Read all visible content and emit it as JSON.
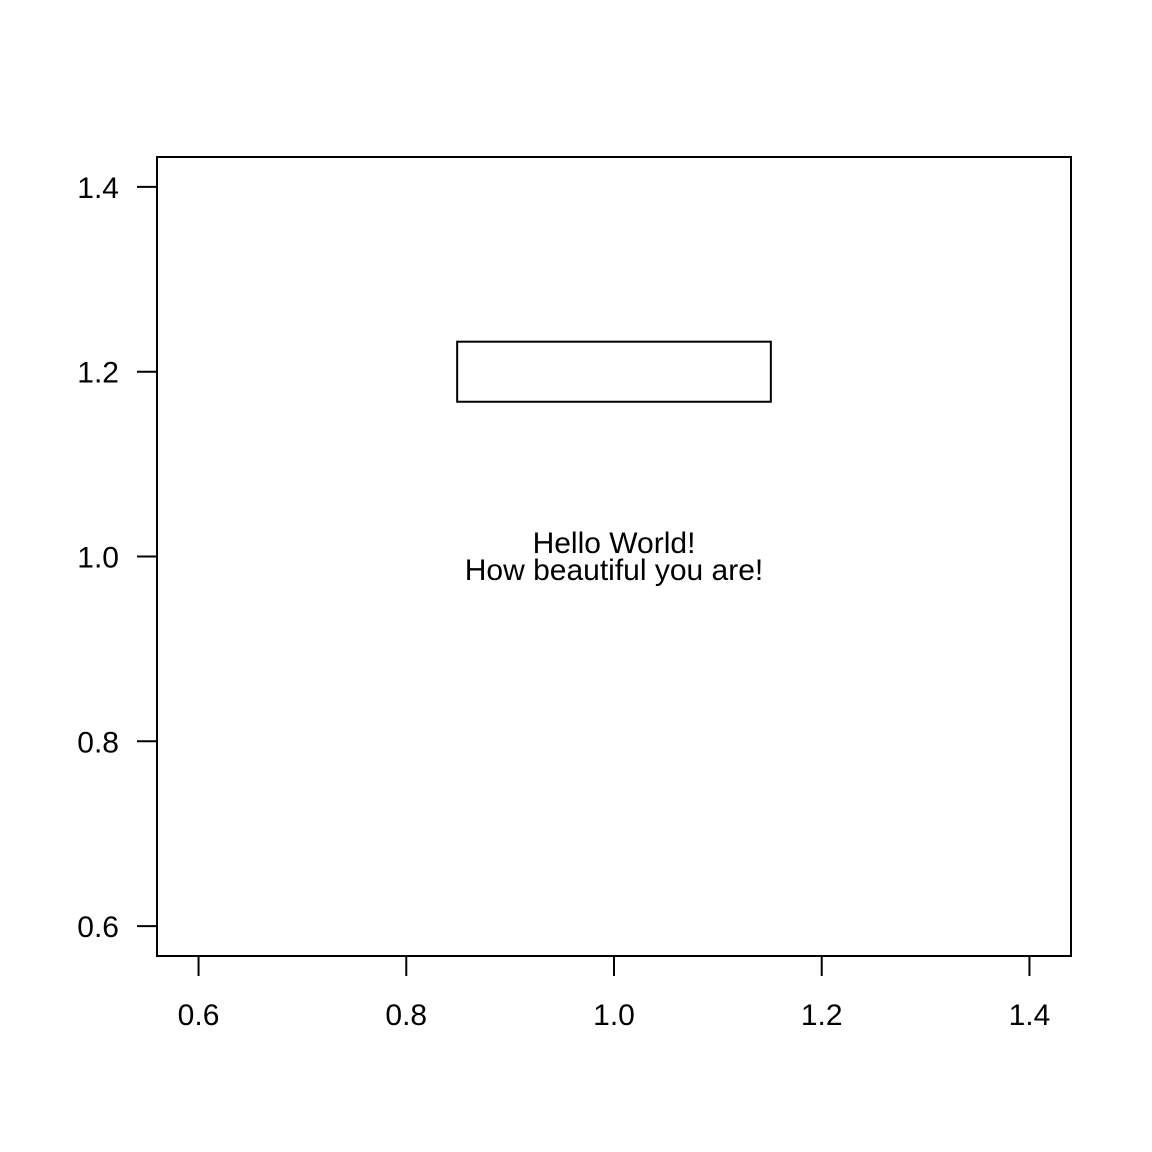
{
  "chart_data": {
    "type": "scatter",
    "title": "",
    "xlabel": "",
    "ylabel": "",
    "xlim": [
      0.56,
      1.44
    ],
    "ylim": [
      0.5676,
      1.4324
    ],
    "xticks": [
      0.6,
      0.8,
      1.0,
      1.2,
      1.4
    ],
    "xtick_labels": [
      "0.6",
      "0.8",
      "1.0",
      "1.2",
      "1.4"
    ],
    "yticks": [
      0.6,
      0.8,
      1.0,
      1.2,
      1.4
    ],
    "ytick_labels": [
      "0.6",
      "0.8",
      "1.0",
      "1.2",
      "1.4"
    ],
    "grid": false,
    "series": [],
    "annotations": [
      {
        "kind": "rect",
        "x0": 0.849,
        "x1": 1.151,
        "y0": 1.1675,
        "y1": 1.2325
      },
      {
        "kind": "text",
        "x": 1.0,
        "y": 1.0,
        "lines": [
          "Hello World!",
          "How beautiful you are!"
        ]
      }
    ]
  }
}
